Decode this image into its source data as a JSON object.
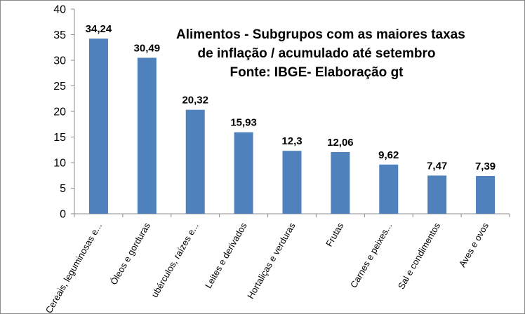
{
  "chart_data": {
    "type": "bar",
    "title_lines": [
      "Alimentos - Subgrupos com as maiores taxas",
      "de inflação / acumulado até setembro",
      "Fonte: IBGE- Elaboração gt"
    ],
    "categories": [
      "Cereais, leguminosas e...",
      "Óleos e gorduras",
      "ubérculos, raízes e...",
      "Leites e derivados",
      "Hortaliças e verduras",
      "Frutas",
      "Carnes e peixes...",
      "Sal e condimentos",
      "Aves e ovos"
    ],
    "values": [
      34.24,
      30.49,
      20.32,
      15.93,
      12.3,
      12.06,
      9.62,
      7.47,
      7.39
    ],
    "value_labels": [
      "34,24",
      "30,49",
      "20,32",
      "15,93",
      "12,3",
      "12,06",
      "9,62",
      "7,47",
      "7,39"
    ],
    "y_ticks": [
      0,
      5,
      10,
      15,
      20,
      25,
      30,
      35,
      40
    ],
    "ylim": [
      0,
      40
    ],
    "grid": false,
    "legend": false,
    "bar_color": "#4F81BD"
  }
}
